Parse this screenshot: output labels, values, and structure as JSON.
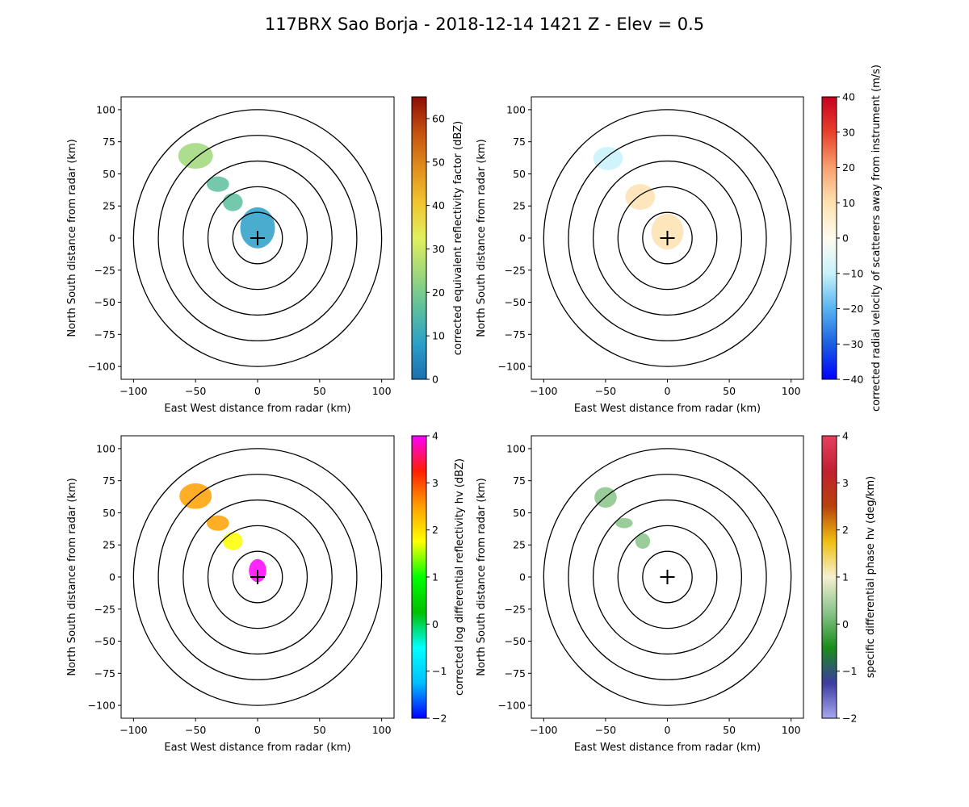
{
  "figure": {
    "title": "117BRX Sao Borja - 2018-12-14 1421 Z -  Elev = 0.5"
  },
  "chart_data": [
    {
      "type": "heatmap",
      "field": "reflectivity",
      "xlabel": "East West distance from radar (km)",
      "ylabel": "North South distance from radar (km)",
      "xlim": [
        -110,
        110
      ],
      "ylim": [
        -110,
        110
      ],
      "xticks": [
        -100,
        -50,
        0,
        50,
        100
      ],
      "yticks": [
        -100,
        -75,
        -50,
        -25,
        0,
        25,
        50,
        75,
        100
      ],
      "range_rings_km": [
        20,
        40,
        60,
        80,
        100
      ],
      "colorbar": {
        "label": "corrected equivalent reflectivity factor (dBZ)",
        "vmin": 0,
        "vmax": 65,
        "ticks": [
          0,
          10,
          20,
          30,
          40,
          50,
          60
        ],
        "colors": [
          "#1c6fb0",
          "#2a9fc8",
          "#5cbf9e",
          "#9fd87a",
          "#e2ef5e",
          "#f1c52f",
          "#e18d1a",
          "#c4510f",
          "#8f0c04"
        ]
      },
      "echo_blobs": [
        {
          "x": -50,
          "y": 64,
          "rx": 14,
          "ry": 10,
          "value": 22
        },
        {
          "x": -32,
          "y": 42,
          "rx": 9,
          "ry": 6,
          "value": 20
        },
        {
          "x": -20,
          "y": 28,
          "rx": 8,
          "ry": 7,
          "value": 18
        },
        {
          "x": 0,
          "y": 8,
          "rx": 14,
          "ry": 16,
          "value": 6
        }
      ]
    },
    {
      "type": "heatmap",
      "field": "velocity",
      "xlabel": "East West distance from radar (km)",
      "ylabel": "North South distance from radar (km)",
      "xlim": [
        -110,
        110
      ],
      "ylim": [
        -110,
        110
      ],
      "xticks": [
        -100,
        -50,
        0,
        50,
        100
      ],
      "yticks": [
        -100,
        -75,
        -50,
        -25,
        0,
        25,
        50,
        75,
        100
      ],
      "range_rings_km": [
        20,
        40,
        60,
        80,
        100
      ],
      "colorbar": {
        "label": "corrected radial velocity of scatterers away from instrument (m/s)",
        "vmin": -40,
        "vmax": 40,
        "ticks": [
          -40,
          -30,
          -20,
          -10,
          0,
          10,
          20,
          30,
          40
        ],
        "colors": [
          "#0000ff",
          "#1a5fe0",
          "#58b4f0",
          "#c8f2fa",
          "#fffbf0",
          "#fde2b0",
          "#f8a070",
          "#e8402c",
          "#c8001e"
        ]
      },
      "echo_blobs": [
        {
          "x": -48,
          "y": 62,
          "rx": 12,
          "ry": 9,
          "value": -6
        },
        {
          "x": -22,
          "y": 32,
          "rx": 12,
          "ry": 10,
          "value": 6
        },
        {
          "x": 0,
          "y": 5,
          "rx": 13,
          "ry": 14,
          "value": 5
        }
      ]
    },
    {
      "type": "heatmap",
      "field": "differential_reflectivity",
      "xlabel": "East West distance from radar (km)",
      "ylabel": "North South distance from radar (km)",
      "xlim": [
        -110,
        110
      ],
      "ylim": [
        -110,
        110
      ],
      "xticks": [
        -100,
        -50,
        0,
        50,
        100
      ],
      "yticks": [
        -100,
        -75,
        -50,
        -25,
        0,
        25,
        50,
        75,
        100
      ],
      "range_rings_km": [
        20,
        40,
        60,
        80,
        100
      ],
      "colorbar": {
        "label": "corrected log differential reflectivity hv (dBZ)",
        "vmin": -2,
        "vmax": 4,
        "ticks": [
          -2,
          -1,
          0,
          1,
          2,
          3,
          4
        ],
        "colors": [
          "#0000ff",
          "#00bfff",
          "#00ffff",
          "#00c000",
          "#00ff00",
          "#ffff00",
          "#ffa000",
          "#ff2000",
          "#ff00ff"
        ]
      },
      "echo_blobs": [
        {
          "x": -50,
          "y": 63,
          "rx": 13,
          "ry": 10,
          "value": 2.7
        },
        {
          "x": -32,
          "y": 42,
          "rx": 9,
          "ry": 6,
          "value": 2.6
        },
        {
          "x": -20,
          "y": 28,
          "rx": 8,
          "ry": 7,
          "value": 1.4
        },
        {
          "x": 0,
          "y": 5,
          "rx": 7,
          "ry": 9,
          "value": 3.8
        }
      ]
    },
    {
      "type": "heatmap",
      "field": "specific_differential_phase",
      "xlabel": "East West distance from radar (km)",
      "ylabel": "North South distance from radar (km)",
      "xlim": [
        -110,
        110
      ],
      "ylim": [
        -110,
        110
      ],
      "xticks": [
        -100,
        -50,
        0,
        50,
        100
      ],
      "yticks": [
        -100,
        -75,
        -50,
        -25,
        0,
        25,
        50,
        75,
        100
      ],
      "range_rings_km": [
        20,
        40,
        60,
        80,
        100
      ],
      "colorbar": {
        "label": "specific differential phase hv (deg/km)",
        "vmin": -2,
        "vmax": 4,
        "ticks": [
          -2,
          -1,
          0,
          1,
          2,
          3,
          4
        ],
        "colors": [
          "#a8a8f0",
          "#3c3ca0",
          "#1a8c1a",
          "#8ac48a",
          "#f5f0d0",
          "#f0c010",
          "#b8420c",
          "#c02030",
          "#e84060"
        ]
      },
      "echo_blobs": [
        {
          "x": -50,
          "y": 62,
          "rx": 9,
          "ry": 8,
          "value": 0.6
        },
        {
          "x": -35,
          "y": 42,
          "rx": 7,
          "ry": 4,
          "value": 0.3
        },
        {
          "x": -20,
          "y": 28,
          "rx": 6,
          "ry": 6,
          "value": 0.2
        }
      ]
    }
  ]
}
